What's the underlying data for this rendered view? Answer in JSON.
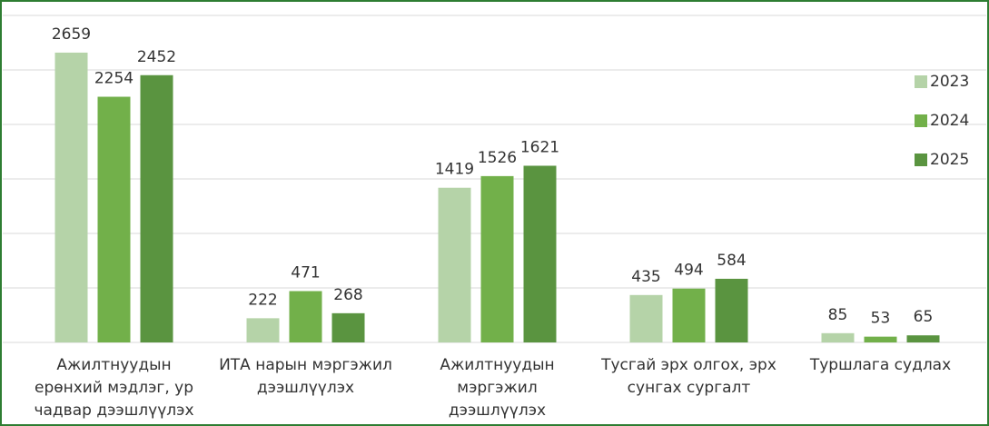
{
  "chart_data": {
    "type": "bar",
    "categories": [
      "Ажилтнуудын ерөнхий мэдлэг, ур чадвар дээшлүүлэх",
      "ИТА нарын мэргэжил дээшлүүлэх",
      "Ажилтнуудын мэргэжил дээшлүүлэх",
      "Тусгай эрх олгох, эрх сунгах сургалт",
      "Туршлага судлах"
    ],
    "series": [
      {
        "name": "2023",
        "color": "#b5d3a8",
        "values": [
          2659,
          222,
          1419,
          435,
          85
        ]
      },
      {
        "name": "2024",
        "color": "#72b04a",
        "values": [
          2254,
          471,
          1526,
          494,
          53
        ]
      },
      {
        "name": "2025",
        "color": "#5a9440",
        "values": [
          2452,
          268,
          1621,
          584,
          65
        ]
      }
    ],
    "ylim": [
      0,
      3000
    ],
    "yticks": [
      0,
      500,
      1000,
      1500,
      2000,
      2500,
      3000
    ],
    "grid": true,
    "legend": "right"
  }
}
